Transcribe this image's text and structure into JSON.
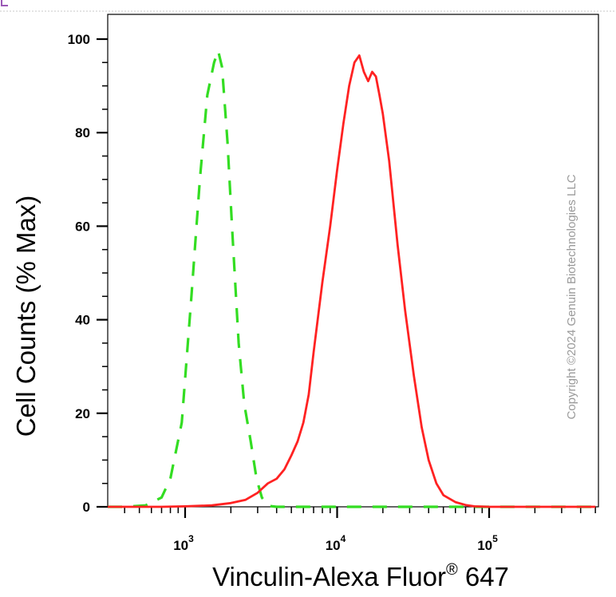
{
  "chart_data": {
    "type": "line",
    "xscale": "log",
    "xlim": [
      200,
      500000
    ],
    "ylim": [
      0,
      100
    ],
    "xlabel": "Vinculin-Alexa Fluor",
    "xlabel_sup": "®",
    "xlabel_suffix": " 647",
    "ylabel": "Cell Counts (% Max)",
    "x_ticks": [
      {
        "value": 1000,
        "label_base": "10",
        "label_exp": "3"
      },
      {
        "value": 10000,
        "label_base": "10",
        "label_exp": "4"
      },
      {
        "value": 100000,
        "label_base": "10",
        "label_exp": "5"
      }
    ],
    "y_ticks": [
      {
        "value": 0,
        "label": "0"
      },
      {
        "value": 20,
        "label": "20"
      },
      {
        "value": 40,
        "label": "40"
      },
      {
        "value": 60,
        "label": "60"
      },
      {
        "value": 80,
        "label": "80"
      },
      {
        "value": 100,
        "label": "100"
      }
    ],
    "watermark": "Copyright ©2024 Genuin Biotechnologies LLC",
    "series": [
      {
        "color": "#33dd22",
        "style": "dashed",
        "x": [
          200,
          400,
          550,
          700,
          800,
          950,
          1100,
          1250,
          1400,
          1550,
          1650,
          1750,
          1900,
          2050,
          2250,
          2450,
          2700,
          2950,
          3200,
          3500,
          4000,
          5000,
          10000,
          100000,
          500000
        ],
        "y": [
          0,
          0,
          0.3,
          2,
          6,
          18,
          45,
          70,
          88,
          95,
          97.5,
          94,
          78,
          58,
          35,
          22,
          14,
          6,
          2,
          0.2,
          0,
          0,
          0,
          0,
          0
        ]
      },
      {
        "color": "#ff2222",
        "style": "solid",
        "x": [
          200,
          700,
          1000,
          1500,
          2000,
          2500,
          3000,
          3500,
          4000,
          4500,
          5000,
          5500,
          6000,
          6500,
          7000,
          8000,
          9000,
          10000,
          11000,
          12000,
          13000,
          14000,
          15000,
          16000,
          17000,
          18000,
          19000,
          20000,
          22000,
          25000,
          28000,
          32000,
          36000,
          40000,
          45000,
          50000,
          60000,
          70000,
          80000,
          100000,
          150000,
          500000
        ],
        "y": [
          0,
          0,
          0.1,
          0.3,
          0.8,
          1.5,
          3,
          5,
          6,
          8,
          11,
          14,
          18,
          24,
          33,
          48,
          60,
          72,
          82,
          90,
          95,
          96.5,
          93,
          91,
          93,
          92,
          88,
          84,
          74,
          56,
          42,
          28,
          17,
          10,
          5,
          2.5,
          1,
          0.4,
          0.1,
          0,
          0,
          0
        ]
      }
    ]
  }
}
